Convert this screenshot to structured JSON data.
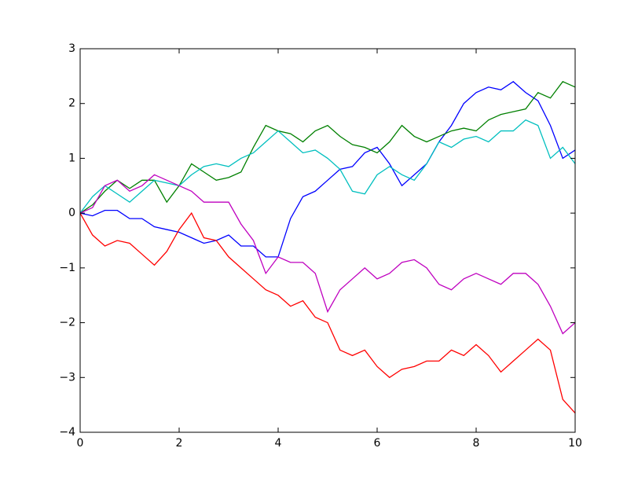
{
  "chart_data": {
    "type": "line",
    "x": [
      0,
      0.25,
      0.5,
      0.75,
      1,
      1.25,
      1.5,
      1.75,
      2,
      2.25,
      2.5,
      2.75,
      3,
      3.25,
      3.5,
      3.75,
      4,
      4.25,
      4.5,
      4.75,
      5,
      5.25,
      5.5,
      5.75,
      6,
      6.25,
      6.5,
      6.75,
      7,
      7.25,
      7.5,
      7.75,
      8,
      8.25,
      8.5,
      8.75,
      9,
      9.25,
      9.5,
      9.75,
      10
    ],
    "series": [
      {
        "color": "#0000ff",
        "values": [
          0,
          -0.05,
          0.05,
          0.05,
          -0.1,
          -0.1,
          -0.25,
          -0.3,
          -0.35,
          -0.45,
          -0.55,
          -0.5,
          -0.4,
          -0.6,
          -0.6,
          -0.8,
          -0.8,
          -0.1,
          0.3,
          0.4,
          0.6,
          0.8,
          0.85,
          1.1,
          1.2,
          0.9,
          0.5,
          0.7,
          0.9,
          1.3,
          1.6,
          2.0,
          2.2,
          2.3,
          2.25,
          2.4,
          2.2,
          2.05,
          1.6,
          1.0,
          1.15
        ]
      },
      {
        "color": "#008000",
        "values": [
          0,
          0.15,
          0.4,
          0.6,
          0.45,
          0.6,
          0.6,
          0.2,
          0.5,
          0.9,
          0.75,
          0.6,
          0.65,
          0.75,
          1.2,
          1.6,
          1.5,
          1.45,
          1.3,
          1.5,
          1.6,
          1.4,
          1.25,
          1.2,
          1.1,
          1.3,
          1.6,
          1.4,
          1.3,
          1.4,
          1.5,
          1.55,
          1.5,
          1.7,
          1.8,
          1.85,
          1.9,
          2.2,
          2.1,
          2.4,
          2.3
        ]
      },
      {
        "color": "#ff0000",
        "values": [
          0,
          -0.4,
          -0.6,
          -0.5,
          -0.55,
          -0.75,
          -0.95,
          -0.7,
          -0.3,
          0.0,
          -0.45,
          -0.5,
          -0.8,
          -1.0,
          -1.2,
          -1.4,
          -1.5,
          -1.7,
          -1.6,
          -1.9,
          -2.0,
          -2.5,
          -2.6,
          -2.5,
          -2.8,
          -3.0,
          -2.85,
          -2.8,
          -2.7,
          -2.7,
          -2.5,
          -2.6,
          -2.4,
          -2.6,
          -2.9,
          -2.7,
          -2.5,
          -2.3,
          -2.5,
          -3.4,
          -3.65
        ]
      },
      {
        "color": "#00bfbf",
        "values": [
          0,
          0.3,
          0.5,
          0.35,
          0.2,
          0.4,
          0.6,
          0.55,
          0.5,
          0.7,
          0.85,
          0.9,
          0.85,
          1.0,
          1.1,
          1.3,
          1.5,
          1.3,
          1.1,
          1.15,
          1.0,
          0.8,
          0.4,
          0.35,
          0.7,
          0.85,
          0.7,
          0.6,
          0.9,
          1.3,
          1.2,
          1.35,
          1.4,
          1.3,
          1.5,
          1.5,
          1.7,
          1.6,
          1.0,
          1.2,
          0.9
        ]
      },
      {
        "color": "#bf00bf",
        "values": [
          0,
          0.1,
          0.5,
          0.6,
          0.4,
          0.5,
          0.7,
          0.6,
          0.5,
          0.4,
          0.2,
          0.2,
          0.2,
          -0.2,
          -0.5,
          -1.1,
          -0.8,
          -0.9,
          -0.9,
          -1.1,
          -1.8,
          -1.4,
          -1.2,
          -1.0,
          -1.2,
          -1.1,
          -0.9,
          -0.85,
          -1.0,
          -1.3,
          -1.4,
          -1.2,
          -1.1,
          -1.2,
          -1.3,
          -1.1,
          -1.1,
          -1.3,
          -1.7,
          -2.2,
          -2.0
        ]
      }
    ],
    "xlim": [
      0,
      10
    ],
    "xticks": [
      0,
      2,
      4,
      6,
      8,
      10
    ],
    "ylim": [
      -4,
      3
    ],
    "yticks": [
      {
        "value": -4,
        "label": "−4"
      },
      {
        "value": -3,
        "label": "−3"
      },
      {
        "value": -2,
        "label": "−2"
      },
      {
        "value": -1,
        "label": "−1"
      },
      0,
      1,
      2,
      3
    ],
    "grid": false
  }
}
